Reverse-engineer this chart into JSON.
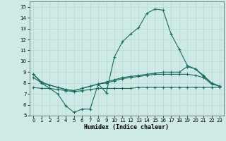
{
  "xlabel": "Humidex (Indice chaleur)",
  "xlim": [
    -0.5,
    23.5
  ],
  "ylim": [
    5,
    15.5
  ],
  "yticks": [
    5,
    6,
    7,
    8,
    9,
    10,
    11,
    12,
    13,
    14,
    15
  ],
  "xticks": [
    0,
    1,
    2,
    3,
    4,
    5,
    6,
    7,
    8,
    9,
    10,
    11,
    12,
    13,
    14,
    15,
    16,
    17,
    18,
    19,
    20,
    21,
    22,
    23
  ],
  "background_color": "#ceeae6",
  "grid_color": "#b8d8d4",
  "line_color": "#1a6b5e",
  "curve1_x": [
    0,
    1,
    2,
    3,
    4,
    5,
    6,
    7,
    8,
    9,
    10,
    11,
    12,
    13,
    14,
    15,
    16,
    17,
    18,
    19,
    20,
    21,
    22,
    23
  ],
  "curve1_y": [
    8.8,
    8.0,
    7.5,
    7.0,
    5.9,
    5.3,
    5.6,
    5.6,
    7.9,
    7.1,
    10.4,
    11.8,
    12.5,
    13.1,
    14.4,
    14.8,
    14.7,
    12.5,
    11.1,
    9.6,
    9.3,
    8.6,
    8.0,
    7.7
  ],
  "curve2_x": [
    0,
    1,
    2,
    3,
    4,
    5,
    6,
    7,
    8,
    9,
    10,
    11,
    12,
    13,
    14,
    15,
    16,
    17,
    18,
    19,
    20,
    21,
    22,
    23
  ],
  "curve2_y": [
    8.8,
    8.1,
    7.8,
    7.6,
    7.4,
    7.3,
    7.5,
    7.7,
    7.9,
    8.1,
    8.3,
    8.5,
    8.6,
    8.7,
    8.8,
    8.9,
    9.0,
    9.0,
    9.0,
    9.5,
    9.3,
    8.7,
    8.0,
    7.7
  ],
  "curve3_x": [
    0,
    1,
    2,
    3,
    4,
    5,
    6,
    7,
    8,
    9,
    10,
    11,
    12,
    13,
    14,
    15,
    16,
    17,
    18,
    19,
    20,
    21,
    22,
    23
  ],
  "curve3_y": [
    8.5,
    8.0,
    7.8,
    7.6,
    7.4,
    7.3,
    7.5,
    7.7,
    7.9,
    8.0,
    8.2,
    8.4,
    8.5,
    8.6,
    8.7,
    8.8,
    8.8,
    8.8,
    8.8,
    8.8,
    8.7,
    8.5,
    7.9,
    7.7
  ],
  "curve4_x": [
    0,
    1,
    2,
    3,
    4,
    5,
    6,
    7,
    8,
    9,
    10,
    11,
    12,
    13,
    14,
    15,
    16,
    17,
    18,
    19,
    20,
    21,
    22,
    23
  ],
  "curve4_y": [
    7.6,
    7.5,
    7.5,
    7.4,
    7.3,
    7.2,
    7.3,
    7.4,
    7.5,
    7.5,
    7.5,
    7.5,
    7.5,
    7.6,
    7.6,
    7.6,
    7.6,
    7.6,
    7.6,
    7.6,
    7.6,
    7.6,
    7.6,
    7.6
  ]
}
